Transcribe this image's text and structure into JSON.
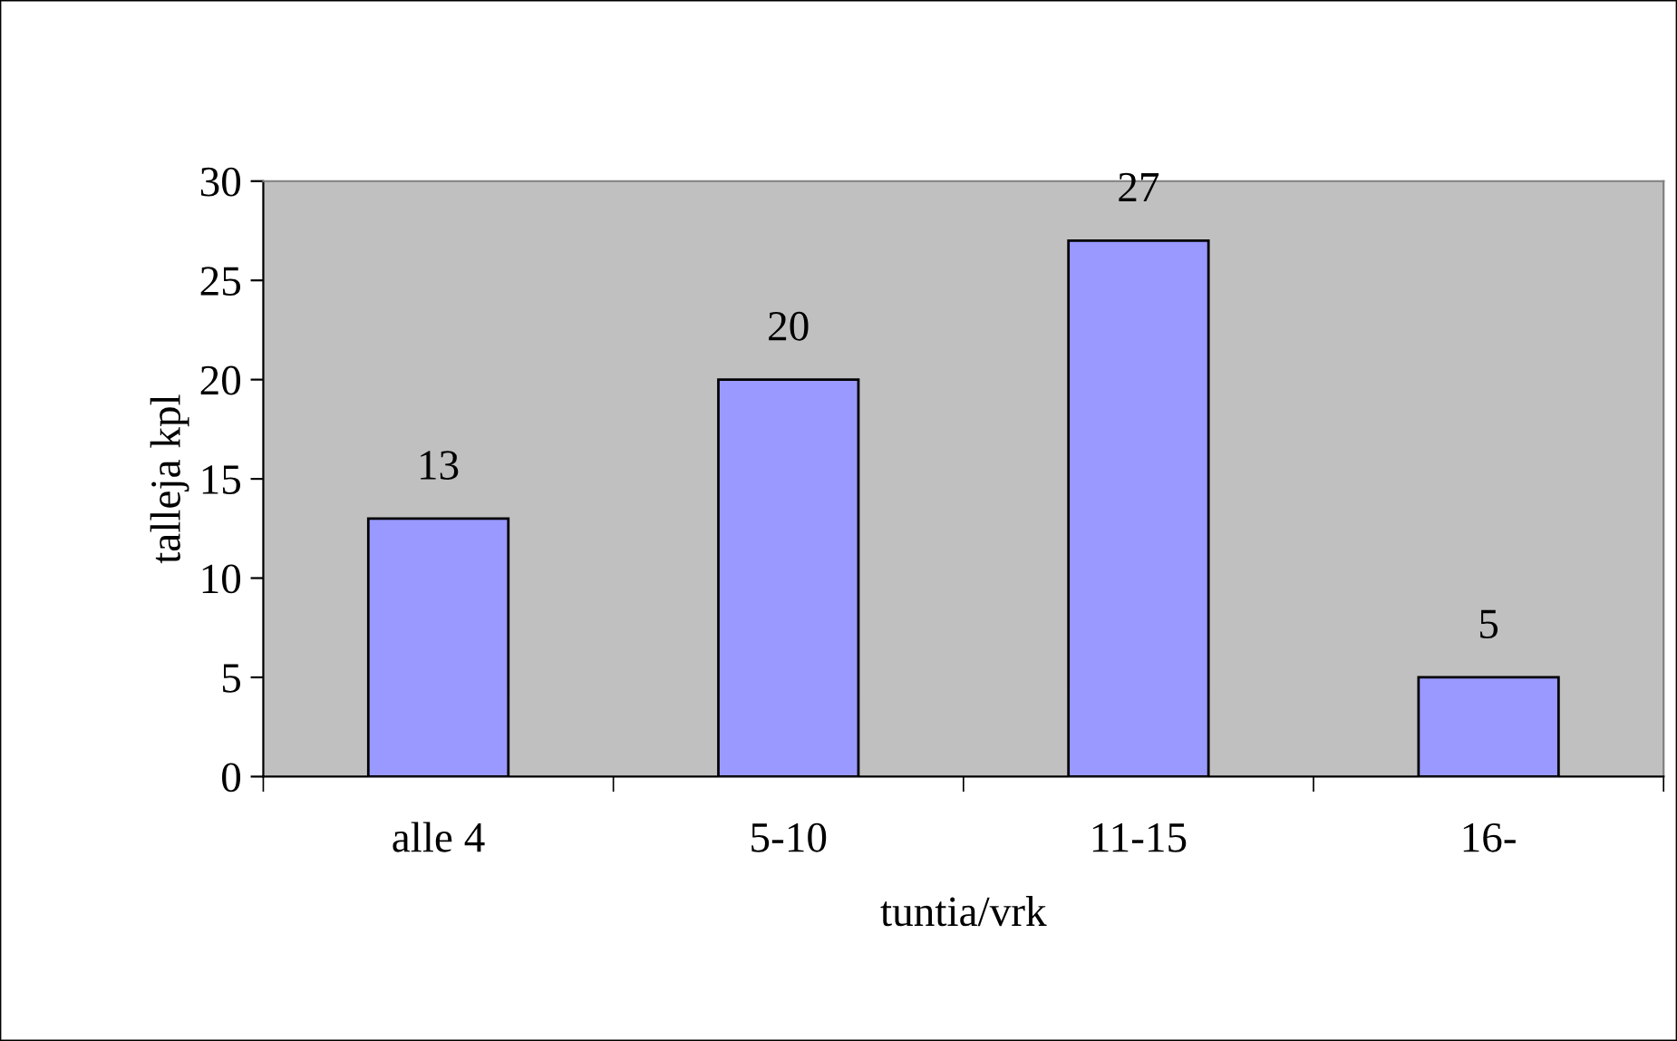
{
  "chart_data": {
    "type": "bar",
    "xlabel": "tuntia/vrk",
    "ylabel": "talleja kpl",
    "categories": [
      "alle 4",
      "5-10",
      "11-15",
      "16-"
    ],
    "values": [
      13,
      20,
      27,
      5
    ],
    "color": "#9999ff",
    "ylim": [
      0,
      30
    ],
    "yticks": [
      0,
      5,
      10,
      15,
      20,
      25,
      30
    ],
    "grid": false,
    "data_labels": true
  }
}
